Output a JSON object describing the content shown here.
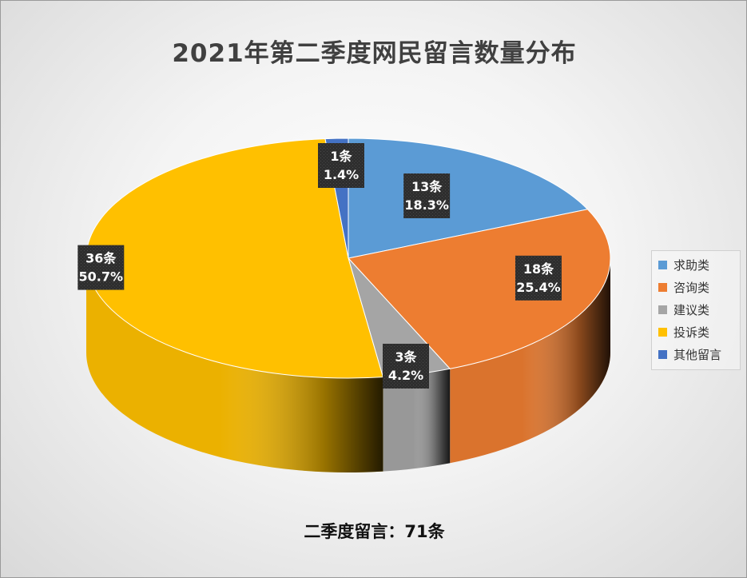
{
  "chart_data": {
    "type": "pie",
    "title": "2021年第二季度网民留言数量分布",
    "categories": [
      "求助类",
      "咨询类",
      "建议类",
      "投诉类",
      "其他留言"
    ],
    "values": [
      13,
      18,
      3,
      36,
      1
    ],
    "percents": [
      "18.3%",
      "25.4%",
      "4.2%",
      "50.7%",
      "1.4%"
    ],
    "count_labels": [
      "13条",
      "18条",
      "3条",
      "36条",
      "1条"
    ],
    "colors": [
      "#5B9BD5",
      "#ED7D31",
      "#A5A5A5",
      "#FFC000",
      "#4472C4"
    ],
    "legend_position": "right",
    "note": "二季度留言：71条"
  }
}
